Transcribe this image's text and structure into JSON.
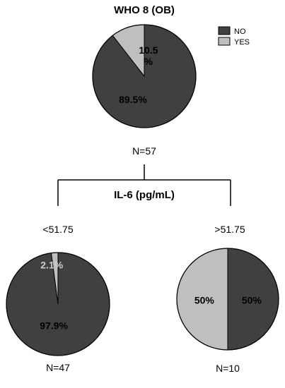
{
  "title": "WHO 8 (OB)",
  "split_label": "IL-6 (pg/mL)",
  "legend": [
    {
      "label": "NO",
      "color": "#404040"
    },
    {
      "label": "YES",
      "color": "#bfbfbf"
    }
  ],
  "chart_data": [
    {
      "type": "pie",
      "title": "WHO 8 (OB)",
      "n_label": "N=57",
      "slices": [
        {
          "label": "NO",
          "value": 89.5,
          "text": "89.5%"
        },
        {
          "label": "YES",
          "value": 10.5,
          "text": "10.5\n%"
        }
      ]
    },
    {
      "type": "pie",
      "group_label": "<51.75",
      "n_label": "N=47",
      "slices": [
        {
          "label": "NO",
          "value": 97.9,
          "text": "97.9%"
        },
        {
          "label": "YES",
          "value": 2.1,
          "text": "2.1%"
        }
      ]
    },
    {
      "type": "pie",
      "group_label": ">51.75",
      "n_label": "N=10",
      "slices": [
        {
          "label": "NO",
          "value": 50,
          "text": "50%"
        },
        {
          "label": "YES",
          "value": 50,
          "text": "50%"
        }
      ]
    }
  ]
}
